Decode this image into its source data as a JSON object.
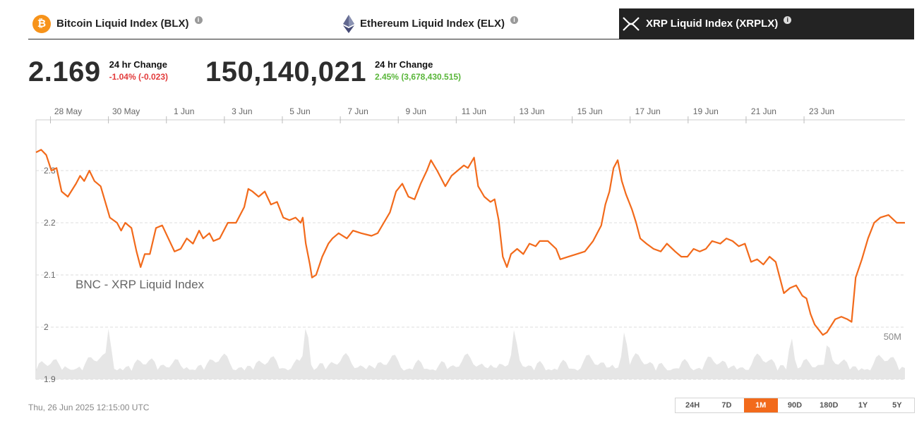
{
  "tabs": [
    {
      "label": "Bitcoin Liquid Index (BLX)",
      "icon": "bitcoin-icon"
    },
    {
      "label": "Ethereum Liquid Index (ELX)",
      "icon": "ethereum-icon"
    },
    {
      "label": "XRP Liquid Index (XRPLX)",
      "icon": "xrp-icon",
      "active": true
    }
  ],
  "price": {
    "value": "2.169",
    "change_label": "24 hr Change",
    "change": "-1.04% (-0.023)"
  },
  "volume": {
    "value": "150,140,021",
    "change_label": "24 hr Change",
    "change": "2.45% (3,678,430.515)"
  },
  "timestamp": "Thu, 26 Jun 2025 12:15:00 UTC",
  "ranges": [
    "24H",
    "7D",
    "1M",
    "90D",
    "180D",
    "1Y",
    "5Y"
  ],
  "active_range": "1M",
  "colors": {
    "line": "#f26a1b",
    "volume": "#e6e6e6",
    "negative": "#e23b3b",
    "positive": "#59b63a",
    "bitcoin": "#f7931a"
  },
  "chart_data": {
    "type": "line",
    "watermark": "BNC - XRP Liquid Index",
    "volume_label": "50M",
    "x_ticks": [
      "28 May",
      "30 May",
      "1 Jun",
      "3 Jun",
      "5 Jun",
      "7 Jun",
      "9 Jun",
      "11 Jun",
      "13 Jun",
      "15 Jun",
      "17 Jun",
      "19 Jun",
      "21 Jun",
      "23 Jun"
    ],
    "y_ticks": [
      1.9,
      2,
      2.1,
      2.2,
      2.3
    ],
    "ylim": [
      1.9,
      2.36
    ],
    "x_range_days": [
      -0.55,
      29.55
    ],
    "grid": true,
    "series": [
      {
        "values": [
          [
            -0.55,
            2.335
          ],
          [
            -0.3,
            2.34
          ],
          [
            -0.05,
            2.33
          ],
          [
            0.2,
            2.3
          ],
          [
            0.45,
            2.305
          ],
          [
            0.7,
            2.26
          ],
          [
            1.0,
            2.25
          ],
          [
            1.4,
            2.275
          ],
          [
            1.6,
            2.29
          ],
          [
            1.8,
            2.28
          ],
          [
            2.05,
            2.3
          ],
          [
            2.3,
            2.28
          ],
          [
            2.6,
            2.27
          ],
          [
            2.9,
            2.23
          ],
          [
            3.05,
            2.21
          ],
          [
            3.4,
            2.2
          ],
          [
            3.6,
            2.185
          ],
          [
            3.8,
            2.2
          ],
          [
            4.1,
            2.19
          ],
          [
            4.35,
            2.145
          ],
          [
            4.55,
            2.115
          ],
          [
            4.75,
            2.14
          ],
          [
            5.0,
            2.14
          ],
          [
            5.3,
            2.19
          ],
          [
            5.6,
            2.195
          ],
          [
            5.9,
            2.17
          ],
          [
            6.2,
            2.145
          ],
          [
            6.5,
            2.15
          ],
          [
            6.8,
            2.17
          ],
          [
            7.1,
            2.16
          ],
          [
            7.4,
            2.185
          ],
          [
            7.6,
            2.17
          ],
          [
            7.9,
            2.18
          ],
          [
            8.1,
            2.165
          ],
          [
            8.4,
            2.17
          ],
          [
            8.8,
            2.2
          ],
          [
            9.2,
            2.2
          ],
          [
            9.6,
            2.23
          ],
          [
            9.8,
            2.265
          ],
          [
            10.0,
            2.26
          ],
          [
            10.3,
            2.25
          ],
          [
            10.6,
            2.26
          ],
          [
            10.9,
            2.235
          ],
          [
            11.2,
            2.24
          ],
          [
            11.5,
            2.21
          ],
          [
            11.8,
            2.205
          ],
          [
            12.1,
            2.21
          ],
          [
            12.35,
            2.2
          ],
          [
            12.45,
            2.21
          ],
          [
            12.6,
            2.16
          ],
          [
            12.8,
            2.12
          ],
          [
            12.9,
            2.095
          ],
          [
            13.1,
            2.1
          ],
          [
            13.4,
            2.135
          ],
          [
            13.7,
            2.16
          ],
          [
            13.9,
            2.17
          ],
          [
            14.2,
            2.18
          ],
          [
            14.6,
            2.17
          ],
          [
            14.9,
            2.185
          ],
          [
            15.3,
            2.18
          ],
          [
            15.8,
            2.175
          ],
          [
            16.1,
            2.18
          ],
          [
            16.4,
            2.2
          ],
          [
            16.7,
            2.22
          ],
          [
            17.0,
            2.26
          ],
          [
            17.3,
            2.275
          ],
          [
            17.6,
            2.25
          ],
          [
            17.9,
            2.245
          ],
          [
            18.2,
            2.275
          ],
          [
            18.5,
            2.3
          ],
          [
            18.7,
            2.32
          ],
          [
            19.0,
            2.3
          ],
          [
            19.4,
            2.27
          ],
          [
            19.7,
            2.29
          ],
          [
            20.0,
            2.3
          ],
          [
            20.3,
            2.31
          ],
          [
            20.5,
            2.305
          ],
          [
            20.8,
            2.325
          ],
          [
            21.0,
            2.27
          ],
          [
            21.3,
            2.25
          ],
          [
            21.6,
            2.24
          ],
          [
            21.8,
            2.245
          ],
          [
            22.0,
            2.205
          ],
          [
            22.2,
            2.135
          ],
          [
            22.4,
            2.115
          ],
          [
            22.6,
            2.14
          ],
          [
            22.9,
            2.15
          ],
          [
            23.2,
            2.14
          ],
          [
            23.5,
            2.16
          ],
          [
            23.8,
            2.155
          ],
          [
            24.0,
            2.165
          ],
          [
            24.4,
            2.165
          ],
          [
            24.8,
            2.15
          ],
          [
            25.0,
            2.13
          ],
          [
            25.4,
            2.135
          ],
          [
            25.8,
            2.14
          ],
          [
            26.2,
            2.145
          ],
          [
            26.6,
            2.165
          ],
          [
            27.0,
            2.195
          ],
          [
            27.2,
            2.235
          ],
          [
            27.4,
            2.26
          ],
          [
            27.6,
            2.305
          ],
          [
            27.8,
            2.32
          ],
          [
            28.0,
            2.28
          ],
          [
            28.2,
            2.255
          ],
          [
            28.5,
            2.225
          ],
          [
            28.7,
            2.2
          ],
          [
            28.9,
            2.17
          ],
          [
            29.2,
            2.16
          ],
          [
            29.55,
            2.15
          ],
          [
            29.9,
            2.145
          ],
          [
            30.2,
            2.16
          ],
          [
            30.6,
            2.145
          ],
          [
            30.9,
            2.135
          ],
          [
            31.2,
            2.135
          ],
          [
            31.5,
            2.15
          ],
          [
            31.8,
            2.145
          ],
          [
            32.1,
            2.15
          ],
          [
            32.4,
            2.165
          ],
          [
            32.8,
            2.16
          ],
          [
            33.1,
            2.17
          ],
          [
            33.4,
            2.165
          ],
          [
            33.7,
            2.155
          ],
          [
            34.0,
            2.16
          ],
          [
            34.3,
            2.125
          ],
          [
            34.6,
            2.13
          ],
          [
            34.9,
            2.12
          ],
          [
            35.2,
            2.135
          ],
          [
            35.5,
            2.125
          ],
          [
            35.9,
            2.065
          ],
          [
            36.2,
            2.075
          ],
          [
            36.5,
            2.08
          ],
          [
            36.8,
            2.06
          ],
          [
            37.0,
            2.055
          ],
          [
            37.2,
            2.025
          ],
          [
            37.4,
            2.005
          ],
          [
            37.6,
            1.995
          ],
          [
            37.8,
            1.985
          ],
          [
            38.0,
            1.99
          ],
          [
            38.4,
            2.015
          ],
          [
            38.7,
            2.02
          ],
          [
            39.0,
            2.015
          ],
          [
            39.2,
            2.01
          ],
          [
            39.4,
            2.095
          ],
          [
            39.7,
            2.13
          ],
          [
            40.0,
            2.17
          ],
          [
            40.3,
            2.2
          ],
          [
            40.6,
            2.21
          ],
          [
            41.0,
            2.215
          ],
          [
            41.4,
            2.2
          ],
          [
            41.8,
            2.2
          ]
        ]
      }
    ]
  }
}
